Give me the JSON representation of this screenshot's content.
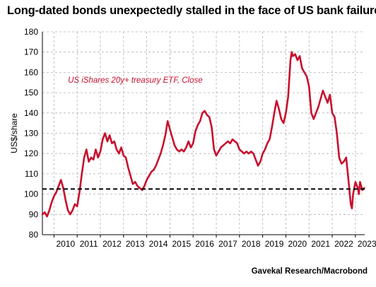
{
  "title": "Long-dated bonds unexpectedly stalled in the face of US bank failures",
  "credit": "Gavekal Research/Macrobond",
  "chart_data": {
    "type": "line",
    "ylabel": "US$/share",
    "xlabel": "",
    "ylim": [
      80,
      180
    ],
    "yticks": [
      80,
      90,
      100,
      110,
      120,
      130,
      140,
      150,
      160,
      170,
      180
    ],
    "xlim": [
      2009.5,
      2023.4
    ],
    "xticks": [
      "2010",
      "2011",
      "2012",
      "2013",
      "2014",
      "2015",
      "2016",
      "2017",
      "2018",
      "2019",
      "2020",
      "2021",
      "2022",
      "2023"
    ],
    "grid": true,
    "colors": {
      "series": "#c8102e",
      "reference": "#000000",
      "grid": "#b0b0b0"
    },
    "series": [
      {
        "name": "US iShares 20y+ treasury ETF, Close",
        "points": [
          [
            2009.5,
            90
          ],
          [
            2009.6,
            91
          ],
          [
            2009.7,
            89
          ],
          [
            2009.8,
            92
          ],
          [
            2009.9,
            96
          ],
          [
            2010.0,
            99
          ],
          [
            2010.1,
            101
          ],
          [
            2010.2,
            104
          ],
          [
            2010.3,
            107
          ],
          [
            2010.4,
            103
          ],
          [
            2010.5,
            97
          ],
          [
            2010.6,
            92
          ],
          [
            2010.7,
            90
          ],
          [
            2010.8,
            92
          ],
          [
            2010.9,
            95
          ],
          [
            2011.0,
            94
          ],
          [
            2011.1,
            101
          ],
          [
            2011.2,
            110
          ],
          [
            2011.3,
            118
          ],
          [
            2011.4,
            122
          ],
          [
            2011.5,
            116
          ],
          [
            2011.6,
            118
          ],
          [
            2011.7,
            117
          ],
          [
            2011.8,
            122
          ],
          [
            2011.9,
            118
          ],
          [
            2012.0,
            121
          ],
          [
            2012.1,
            127
          ],
          [
            2012.2,
            130
          ],
          [
            2012.3,
            126
          ],
          [
            2012.4,
            129
          ],
          [
            2012.5,
            125
          ],
          [
            2012.6,
            126
          ],
          [
            2012.7,
            122
          ],
          [
            2012.8,
            120
          ],
          [
            2012.9,
            123
          ],
          [
            2013.0,
            119
          ],
          [
            2013.1,
            118
          ],
          [
            2013.2,
            113
          ],
          [
            2013.3,
            109
          ],
          [
            2013.4,
            105
          ],
          [
            2013.5,
            106
          ],
          [
            2013.6,
            104
          ],
          [
            2013.7,
            103
          ],
          [
            2013.8,
            102
          ],
          [
            2013.9,
            104
          ],
          [
            2014.0,
            107
          ],
          [
            2014.1,
            109
          ],
          [
            2014.2,
            111
          ],
          [
            2014.3,
            112
          ],
          [
            2014.4,
            114
          ],
          [
            2014.5,
            117
          ],
          [
            2014.6,
            120
          ],
          [
            2014.7,
            124
          ],
          [
            2014.8,
            129
          ],
          [
            2014.9,
            136
          ],
          [
            2015.0,
            132
          ],
          [
            2015.1,
            128
          ],
          [
            2015.2,
            124
          ],
          [
            2015.3,
            122
          ],
          [
            2015.4,
            121
          ],
          [
            2015.5,
            122
          ],
          [
            2015.6,
            121
          ],
          [
            2015.7,
            123
          ],
          [
            2015.8,
            126
          ],
          [
            2015.9,
            123
          ],
          [
            2016.0,
            125
          ],
          [
            2016.1,
            131
          ],
          [
            2016.2,
            134
          ],
          [
            2016.3,
            136
          ],
          [
            2016.4,
            140
          ],
          [
            2016.5,
            141
          ],
          [
            2016.6,
            139
          ],
          [
            2016.7,
            138
          ],
          [
            2016.8,
            133
          ],
          [
            2016.9,
            122
          ],
          [
            2017.0,
            119
          ],
          [
            2017.1,
            121
          ],
          [
            2017.2,
            123
          ],
          [
            2017.3,
            124
          ],
          [
            2017.4,
            125
          ],
          [
            2017.5,
            126
          ],
          [
            2017.6,
            125
          ],
          [
            2017.7,
            127
          ],
          [
            2017.8,
            126
          ],
          [
            2017.9,
            125
          ],
          [
            2018.0,
            122
          ],
          [
            2018.1,
            121
          ],
          [
            2018.2,
            120
          ],
          [
            2018.3,
            121
          ],
          [
            2018.4,
            120
          ],
          [
            2018.5,
            121
          ],
          [
            2018.6,
            120
          ],
          [
            2018.7,
            117
          ],
          [
            2018.8,
            114
          ],
          [
            2018.9,
            116
          ],
          [
            2019.0,
            120
          ],
          [
            2019.1,
            122
          ],
          [
            2019.2,
            125
          ],
          [
            2019.3,
            127
          ],
          [
            2019.4,
            133
          ],
          [
            2019.5,
            140
          ],
          [
            2019.6,
            146
          ],
          [
            2019.7,
            142
          ],
          [
            2019.8,
            137
          ],
          [
            2019.9,
            135
          ],
          [
            2020.0,
            140
          ],
          [
            2020.1,
            148
          ],
          [
            2020.2,
            166
          ],
          [
            2020.25,
            170
          ],
          [
            2020.3,
            168
          ],
          [
            2020.4,
            169
          ],
          [
            2020.5,
            166
          ],
          [
            2020.6,
            168
          ],
          [
            2020.7,
            162
          ],
          [
            2020.8,
            160
          ],
          [
            2020.9,
            158
          ],
          [
            2021.0,
            153
          ],
          [
            2021.1,
            140
          ],
          [
            2021.2,
            137
          ],
          [
            2021.3,
            140
          ],
          [
            2021.4,
            143
          ],
          [
            2021.5,
            147
          ],
          [
            2021.6,
            151
          ],
          [
            2021.7,
            148
          ],
          [
            2021.8,
            145
          ],
          [
            2021.9,
            149
          ],
          [
            2022.0,
            140
          ],
          [
            2022.1,
            138
          ],
          [
            2022.2,
            130
          ],
          [
            2022.3,
            118
          ],
          [
            2022.4,
            115
          ],
          [
            2022.5,
            116
          ],
          [
            2022.6,
            118
          ],
          [
            2022.7,
            107
          ],
          [
            2022.8,
            95
          ],
          [
            2022.85,
            93
          ],
          [
            2022.9,
            100
          ],
          [
            2023.0,
            106
          ],
          [
            2023.1,
            103
          ],
          [
            2023.15,
            100
          ],
          [
            2023.2,
            106
          ],
          [
            2023.3,
            102
          ],
          [
            2023.38,
            103
          ]
        ]
      }
    ],
    "reference_line": {
      "y": 102.5,
      "style": "dashed"
    },
    "annotations": [
      {
        "text": "US iShares 20y+ treasury ETF, Close",
        "x": 2010.6,
        "y": 155
      }
    ]
  }
}
